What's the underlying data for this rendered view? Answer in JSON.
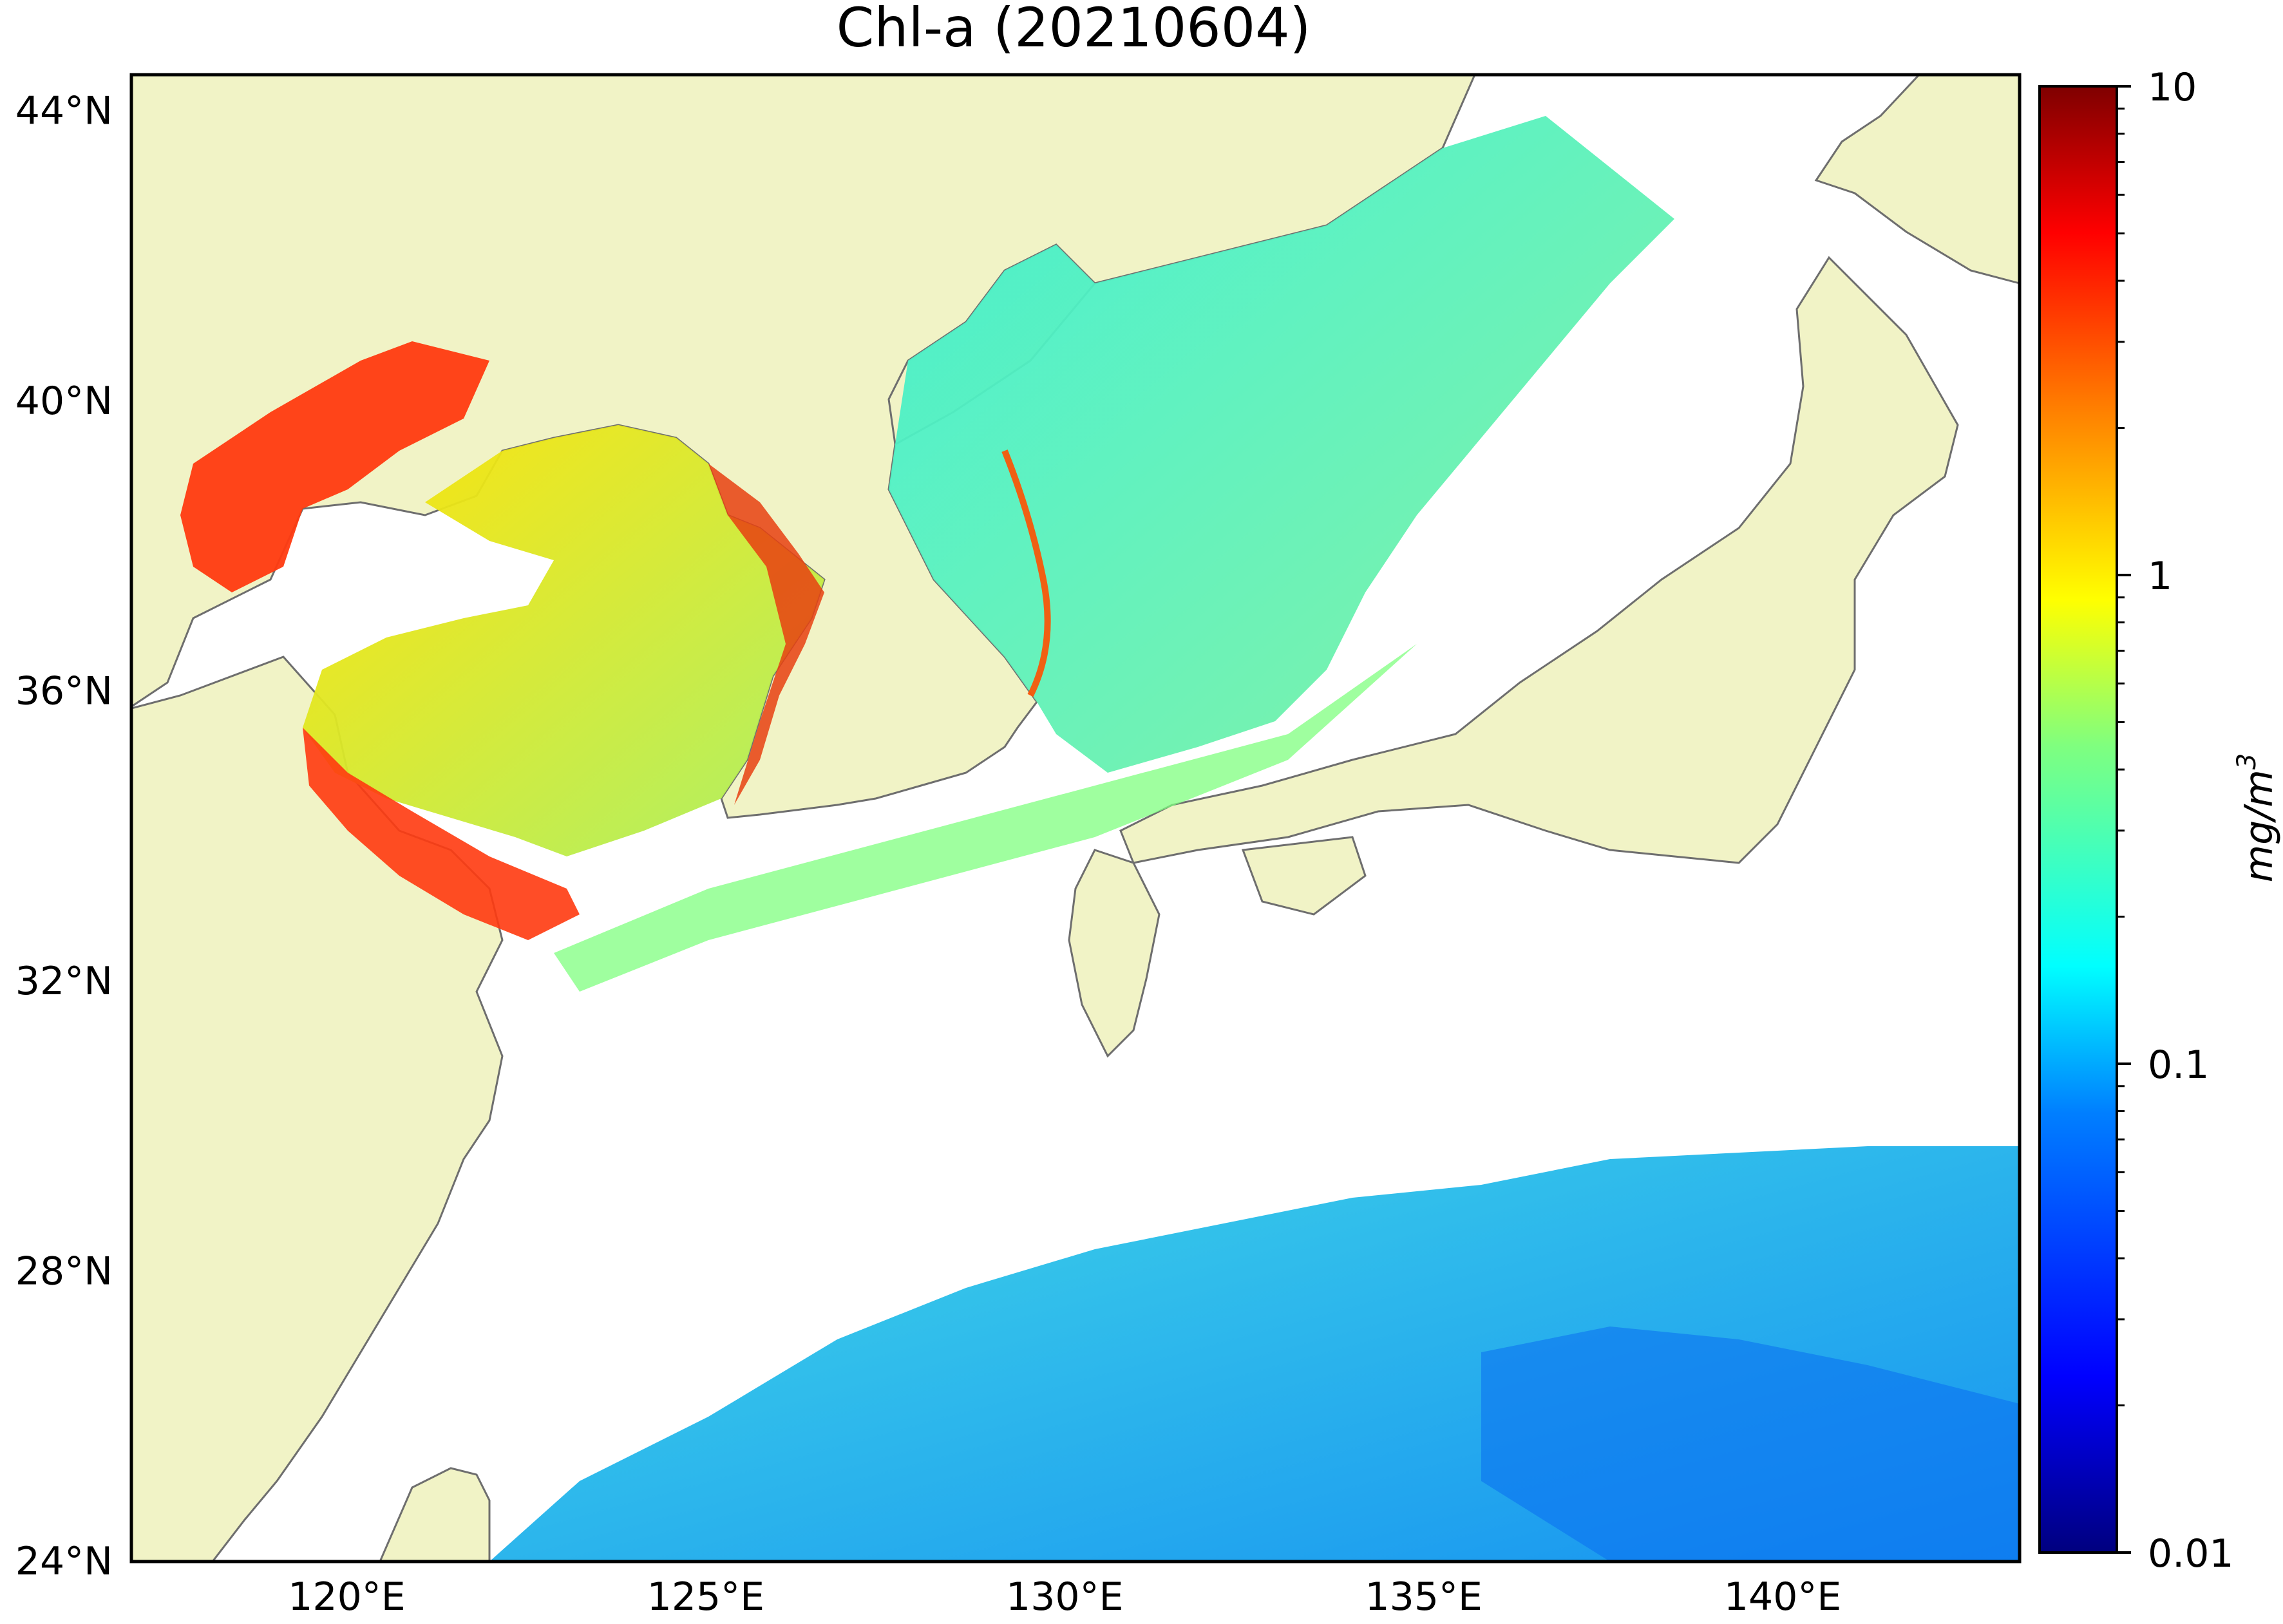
{
  "title": "Chl-a (20210604)",
  "map": {
    "lat_ticks": [
      "44°N",
      "40°N",
      "36°N",
      "32°N",
      "28°N",
      "24°N"
    ],
    "lon_ticks": [
      "120°E",
      "125°E",
      "130°E",
      "135°E",
      "140°E"
    ],
    "lat_values": [
      44,
      40,
      36,
      32,
      28,
      24
    ],
    "lon_values": [
      120,
      125,
      130,
      135,
      140
    ],
    "lon_range": [
      117,
      143.3
    ],
    "lat_range": [
      24,
      44.5
    ],
    "land_color": "#f1f3c6",
    "coast_color": "#6e6e6e",
    "no_data_color": "#ffffff"
  },
  "colorbar": {
    "label_main": "mg/m",
    "label_sup": "3",
    "scale": "log",
    "range": [
      0.01,
      10
    ],
    "ticks": [
      "10",
      "1",
      "0.1",
      "0.01"
    ],
    "tick_values": [
      10,
      1,
      0.1,
      0.01
    ],
    "colormap": "jet",
    "stops": [
      "#00007f",
      "#0000ff",
      "#007fff",
      "#00ffff",
      "#7fff7f",
      "#ffff00",
      "#ff7f00",
      "#ff0000",
      "#7f0000"
    ]
  }
}
